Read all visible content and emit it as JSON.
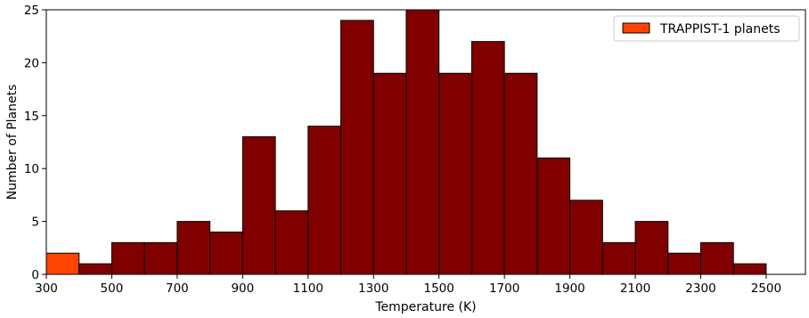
{
  "chart_data": {
    "type": "bar",
    "title": "",
    "xlabel": "Temperature (K)",
    "ylabel": "Number of Planets",
    "xlim": [
      300,
      2620
    ],
    "ylim": [
      0,
      25
    ],
    "bin_width": 100,
    "grid": false,
    "legend_position": "top-right",
    "x_ticks": [
      300,
      500,
      700,
      900,
      1100,
      1300,
      1500,
      1700,
      1900,
      2100,
      2300,
      2500
    ],
    "y_ticks": [
      0,
      5,
      10,
      15,
      20,
      25
    ],
    "series": [
      {
        "name": "TRAPPIST-1 planets",
        "color": "#ff4500",
        "bins": [
          {
            "start": 300,
            "count": 2
          }
        ]
      },
      {
        "color": "#800000",
        "bins": [
          {
            "start": 400,
            "count": 1
          },
          {
            "start": 500,
            "count": 3
          },
          {
            "start": 600,
            "count": 3
          },
          {
            "start": 700,
            "count": 5
          },
          {
            "start": 800,
            "count": 4
          },
          {
            "start": 900,
            "count": 13
          },
          {
            "start": 1000,
            "count": 6
          },
          {
            "start": 1100,
            "count": 14
          },
          {
            "start": 1200,
            "count": 24
          },
          {
            "start": 1300,
            "count": 19
          },
          {
            "start": 1400,
            "count": 25
          },
          {
            "start": 1500,
            "count": 19
          },
          {
            "start": 1600,
            "count": 22
          },
          {
            "start": 1700,
            "count": 19
          },
          {
            "start": 1800,
            "count": 11
          },
          {
            "start": 1900,
            "count": 7
          },
          {
            "start": 2000,
            "count": 3
          },
          {
            "start": 2100,
            "count": 5
          },
          {
            "start": 2200,
            "count": 2
          },
          {
            "start": 2300,
            "count": 3
          },
          {
            "start": 2400,
            "count": 1
          }
        ]
      }
    ]
  }
}
